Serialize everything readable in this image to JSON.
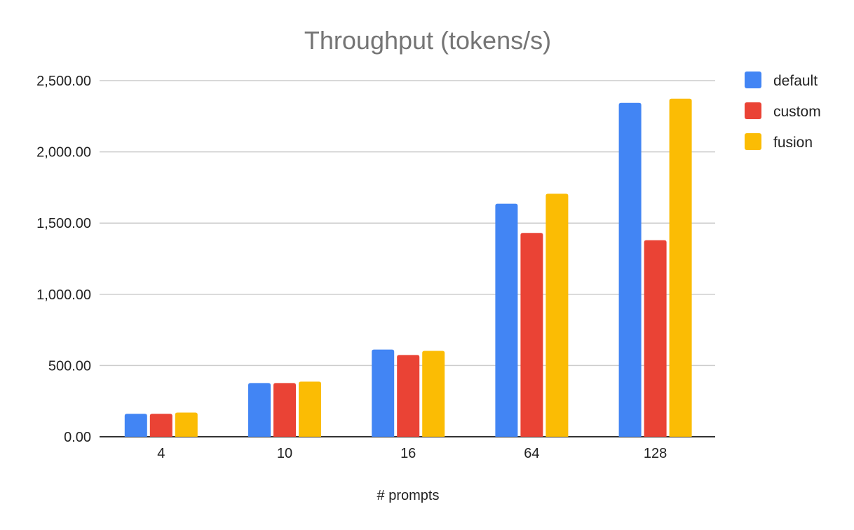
{
  "chart_data": {
    "type": "bar",
    "title": "Throughput (tokens/s)",
    "xlabel": "# prompts",
    "ylabel": "",
    "categories": [
      "4",
      "10",
      "16",
      "64",
      "128"
    ],
    "series": [
      {
        "name": "default",
        "color": "#4285F4",
        "values": [
          161,
          377,
          612,
          1636,
          2344
        ]
      },
      {
        "name": "custom",
        "color": "#EA4335",
        "values": [
          161,
          377,
          574,
          1431,
          1380
        ]
      },
      {
        "name": "fusion",
        "color": "#FBBC04",
        "values": [
          170,
          387,
          603,
          1706,
          2373
        ]
      }
    ],
    "ylim": [
      0,
      2500
    ],
    "yticks": [
      "0.00",
      "500.00",
      "1,000.00",
      "1,500.00",
      "2,000.00",
      "2,500.00"
    ],
    "grid": true,
    "legend": "right"
  }
}
